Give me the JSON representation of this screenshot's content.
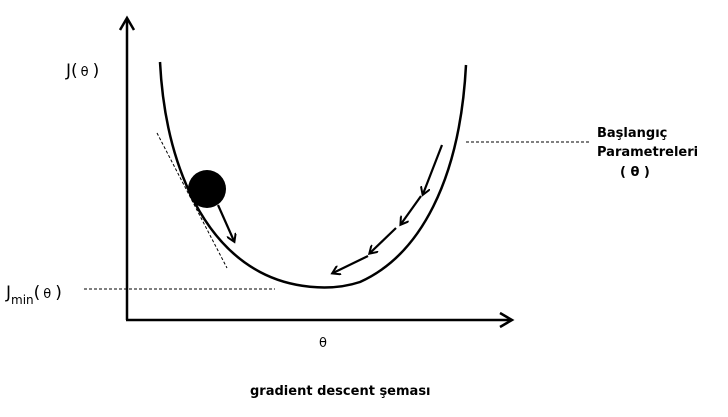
{
  "labels": {
    "y_axis_prefix": "J(",
    "y_axis_theta": "θ",
    "y_axis_suffix": ")",
    "jmin_J": "J",
    "jmin_sub": "min",
    "jmin_open": "(",
    "jmin_theta": "θ",
    "jmin_close": ")",
    "x_axis_theta": "θ",
    "start_line1": "Başlangıç",
    "start_line2": "Parametreleri",
    "start_param": "( θ )",
    "caption": "gradient descent şeması"
  },
  "colors": {
    "stroke": "#000000",
    "background": "#ffffff"
  }
}
